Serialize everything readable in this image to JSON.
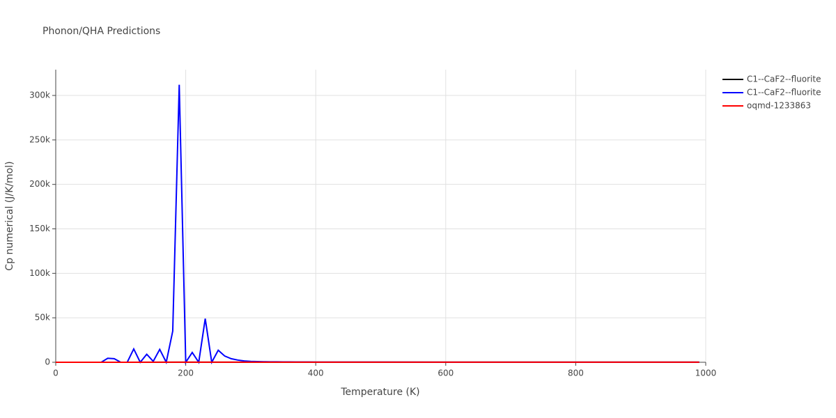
{
  "chart_data": {
    "type": "line",
    "title": "Phonon/QHA Predictions",
    "x_label": "Temperature (K)",
    "y_label": "Cp numerical (J/K/mol)",
    "xlim": [
      0,
      1000
    ],
    "xticks": [
      0,
      200,
      400,
      600,
      800,
      1000
    ],
    "ylim": [
      0,
      329000
    ],
    "yticks": [
      0,
      {
        "value": 50000,
        "label": "50k"
      },
      {
        "value": 100000,
        "label": "100k"
      },
      {
        "value": 150000,
        "label": "150k"
      },
      {
        "value": 200000,
        "label": "200k"
      },
      {
        "value": 250000,
        "label": "250k"
      },
      {
        "value": 300000,
        "label": "300k"
      }
    ],
    "grid": true,
    "legend": "right",
    "series": [
      {
        "name": "C1--CaF2--fluorite",
        "color": "#000000",
        "x": [
          0,
          100,
          200,
          300,
          400,
          500,
          600,
          700,
          800,
          900,
          990
        ],
        "values": [
          0,
          40,
          55,
          62,
          66,
          68,
          70,
          71,
          72,
          73,
          73
        ]
      },
      {
        "name": "C1--CaF2--fluorite",
        "color": "#0000ff",
        "x": [
          0,
          10,
          20,
          30,
          40,
          50,
          60,
          70,
          80,
          90,
          100,
          110,
          120,
          130,
          140,
          150,
          160,
          170,
          180,
          190,
          200,
          210,
          220,
          230,
          240,
          250,
          260,
          270,
          280,
          290,
          300,
          310,
          320,
          330,
          340,
          350,
          360,
          370,
          380,
          390,
          400,
          500,
          600,
          700,
          800,
          900,
          990
        ],
        "values": [
          0,
          0,
          0,
          0,
          0,
          0,
          0,
          0,
          4500,
          4000,
          0,
          0,
          15000,
          0,
          9000,
          1000,
          14500,
          0,
          35000,
          312000,
          0,
          11000,
          0,
          49000,
          0,
          13500,
          7000,
          4000,
          2500,
          1500,
          1000,
          800,
          600,
          500,
          450,
          400,
          350,
          300,
          280,
          250,
          230,
          150,
          120,
          100,
          90,
          80,
          75
        ]
      },
      {
        "name": "oqmd-1233863",
        "color": "#ff0000",
        "x": [
          0,
          100,
          200,
          300,
          400,
          500,
          600,
          700,
          800,
          900,
          990
        ],
        "values": [
          0,
          38,
          54,
          61,
          65,
          67,
          69,
          70,
          71,
          72,
          72
        ]
      }
    ]
  }
}
